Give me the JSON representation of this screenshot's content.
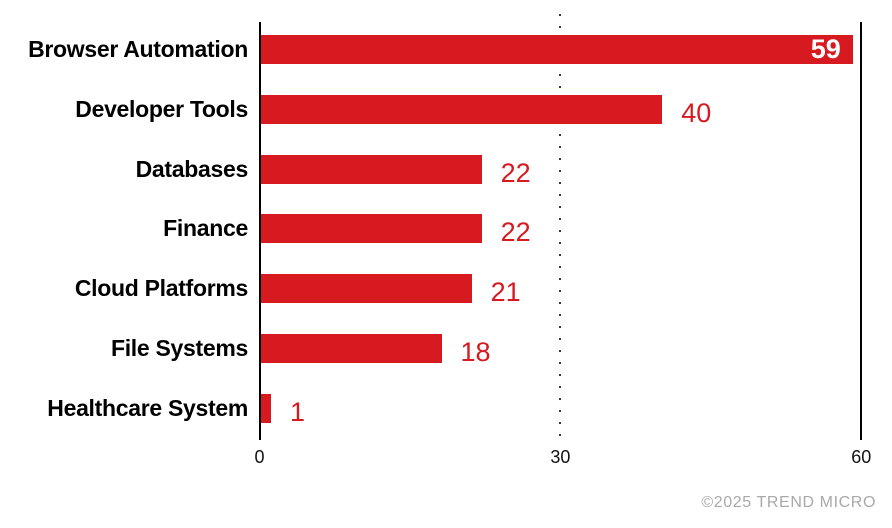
{
  "chart_data": {
    "type": "bar",
    "orientation": "horizontal",
    "title": "",
    "categories": [
      "Browser Automation",
      "Developer Tools",
      "Databases",
      "Finance",
      "Cloud Platforms",
      "File Systems",
      "Healthcare System"
    ],
    "values": [
      59,
      40,
      22,
      22,
      21,
      18,
      1
    ],
    "value_label_placement": [
      "inside",
      "outside",
      "outside",
      "outside",
      "outside",
      "outside",
      "outside"
    ],
    "xlabel": "",
    "ylabel": "",
    "xlim": [
      0,
      60
    ],
    "x_ticks": [
      0,
      30,
      60
    ],
    "gridlines": [
      {
        "x": 0,
        "style": "solid"
      },
      {
        "x": 30,
        "style": "dotted"
      },
      {
        "x": 60,
        "style": "solid"
      }
    ],
    "legend": "none",
    "grid_horizontal": false
  },
  "footer": {
    "copyright": "©2025 TREND MICRO"
  },
  "colors": {
    "background": "#ffffff",
    "bar": "#d71920",
    "value_inside": "#ffffff",
    "value_outside": "#d71920",
    "category_label": "#000000",
    "axis_line": "#000000",
    "dotted_line": "#3a3a3a",
    "tick_label": "#111111",
    "copyright": "#a9a9a9"
  }
}
